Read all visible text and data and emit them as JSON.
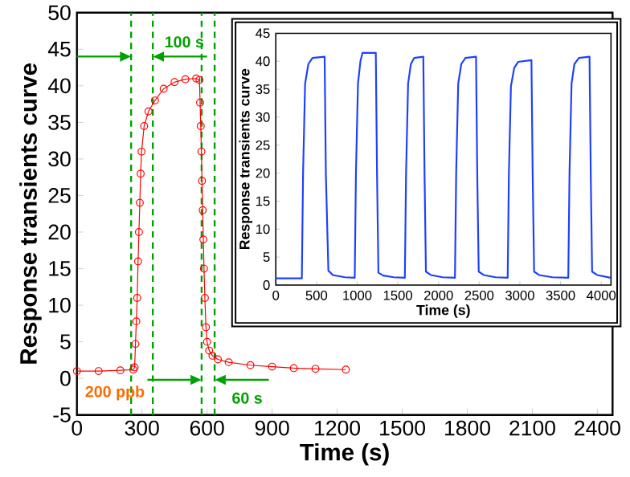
{
  "chart_data": [
    {
      "type": "line",
      "xlabel": "Time (s)",
      "ylabel": "Response transients curve",
      "xlim": [
        0,
        2470
      ],
      "ylim": [
        -5,
        50
      ],
      "xticks": [
        0,
        300,
        600,
        900,
        1200,
        1500,
        1800,
        2100,
        2400
      ],
      "yticks": [
        -5,
        0,
        5,
        10,
        15,
        20,
        25,
        30,
        35,
        40,
        45,
        50
      ],
      "x": [
        0,
        100,
        200,
        260,
        266,
        270,
        274,
        278,
        282,
        286,
        290,
        294,
        298,
        310,
        330,
        360,
        400,
        450,
        500,
        550,
        565,
        568,
        571,
        574,
        577,
        580,
        583,
        586,
        590,
        595,
        600,
        610,
        625,
        650,
        700,
        800,
        900,
        1000,
        1100,
        1240
      ],
      "series": [
        {
          "color": "#ff0000",
          "marker": "circle",
          "values": [
            1.0,
            1.0,
            1.1,
            1.2,
            1.5,
            4.7,
            7.8,
            11,
            16,
            20,
            24,
            28,
            31,
            34.5,
            36.5,
            38,
            39.6,
            40.5,
            40.9,
            41,
            40.8,
            37.7,
            34.5,
            31,
            27,
            23,
            19,
            15,
            11,
            7,
            5,
            3.8,
            3.1,
            2.6,
            2.2,
            1.8,
            1.6,
            1.4,
            1.3,
            1.2
          ]
        }
      ],
      "ref_lines": [
        {
          "axis": "x",
          "value": 250,
          "color": "#00a000",
          "line_style": "dashed"
        },
        {
          "axis": "x",
          "value": 350,
          "color": "#00a000",
          "line_style": "dashed"
        },
        {
          "axis": "x",
          "value": 575,
          "color": "#00a000",
          "line_style": "dashed"
        },
        {
          "axis": "x",
          "value": 635,
          "color": "#00a000",
          "line_style": "dashed"
        }
      ],
      "annotations": [
        "100 s",
        "200 ppb",
        "60 s"
      ],
      "grid": false
    },
    {
      "type": "line",
      "xlabel": "Time (s)",
      "ylabel": "Response transients curve",
      "xlim": [
        0,
        4120
      ],
      "ylim": [
        0,
        45
      ],
      "xticks": [
        0,
        500,
        1000,
        1500,
        2000,
        2500,
        3000,
        3500,
        4000
      ],
      "yticks": [
        0,
        5,
        10,
        15,
        20,
        25,
        30,
        35,
        40,
        45
      ],
      "x": [
        0,
        320,
        335,
        360,
        400,
        451,
        600,
        615,
        646,
        700,
        850,
        970,
        985,
        1010,
        1040,
        1066,
        1229,
        1244,
        1261,
        1320,
        1450,
        1586,
        1601,
        1626,
        1660,
        1702,
        1813,
        1828,
        1845,
        1905,
        2050,
        2202,
        2217,
        2242,
        2280,
        2331,
        2461,
        2476,
        2494,
        2555,
        2700,
        2850,
        2865,
        2890,
        2930,
        2980,
        3142,
        3157,
        3175,
        3235,
        3400,
        3595,
        3610,
        3635,
        3670,
        3726,
        3856,
        3871,
        3888,
        3950,
        4115
      ],
      "grid": false,
      "series": [
        {
          "color": "#1f3fff",
          "marker": "none",
          "values": [
            1.2,
            1.2,
            20,
            36,
            39.5,
            40.6,
            40.8,
            20,
            2.6,
            1.8,
            1.4,
            1.3,
            20,
            36,
            40,
            41.5,
            41.5,
            20,
            2.2,
            1.7,
            1.4,
            1.3,
            20,
            36,
            39.5,
            40.6,
            40.8,
            20,
            2.4,
            1.8,
            1.4,
            1.3,
            20,
            36,
            39.5,
            40.6,
            40.8,
            20,
            2.4,
            1.8,
            1.4,
            1.3,
            20,
            35.5,
            38.8,
            39.9,
            40.2,
            20,
            2.4,
            1.8,
            1.4,
            1.3,
            20,
            36,
            39.5,
            40.6,
            40.8,
            20,
            2.4,
            1.8,
            1.3
          ]
        }
      ]
    }
  ]
}
